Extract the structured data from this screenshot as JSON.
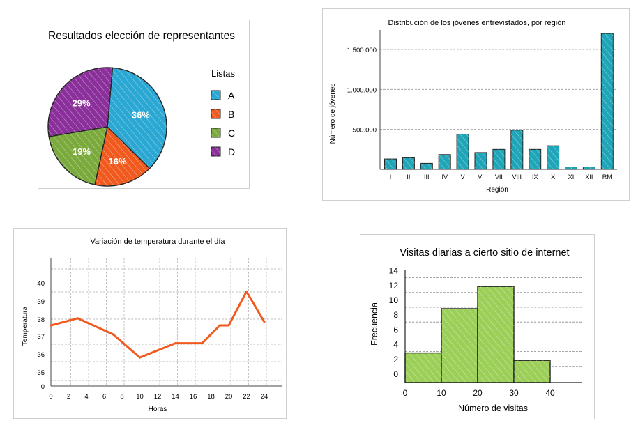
{
  "chart_data": [
    {
      "type": "pie",
      "title": "Resultados elección de representantes",
      "legend_title": "Listas",
      "legend_position": "right",
      "labels": [
        "A",
        "B",
        "C",
        "D"
      ],
      "values": [
        36,
        16,
        19,
        29
      ],
      "value_labels": [
        "36%",
        "16%",
        "19%",
        "29%"
      ],
      "colors": [
        "#2aa7d3",
        "#f05a1f",
        "#7aaa3b",
        "#8b2f9b"
      ]
    },
    {
      "type": "bar",
      "title": "Distribución de los jóvenes entrevistados, por región",
      "xlabel": "Región",
      "ylabel": "Número de jóvenes",
      "categories": [
        "I",
        "II",
        "III",
        "IV",
        "V",
        "VI",
        "VII",
        "VIII",
        "IX",
        "X",
        "XI",
        "XII",
        "RM"
      ],
      "values": [
        130000,
        145000,
        75000,
        185000,
        440000,
        210000,
        250000,
        490000,
        250000,
        295000,
        30000,
        30000,
        1700000
      ],
      "ylim": [
        0,
        1800000
      ],
      "yticks": [
        500000,
        1000000,
        1500000
      ],
      "ytick_labels": [
        "500.000",
        "1.000.000",
        "1.500.000"
      ],
      "grid": true,
      "color": "#1fa5b8"
    },
    {
      "type": "line",
      "title": "Variación de temperatura durante el día",
      "xlabel": "Horas",
      "ylabel": "Temperatura",
      "xticks": [
        0,
        2,
        4,
        6,
        8,
        10,
        12,
        14,
        16,
        18,
        20,
        22,
        24
      ],
      "xtick_labels": [
        "0",
        "2",
        "4",
        "6",
        "8",
        "10",
        "12",
        "14",
        "16",
        "18",
        "20",
        "22",
        "24"
      ],
      "ytick_labels": [
        "0",
        "35",
        "36",
        "37",
        "38",
        "39",
        "40"
      ],
      "x": [
        0,
        3,
        7,
        10,
        14,
        17,
        19,
        20,
        22,
        24
      ],
      "y": [
        37.6,
        38.0,
        37.1,
        35.8,
        36.6,
        36.6,
        37.6,
        37.6,
        39.5,
        37.8
      ],
      "grid": true,
      "color": "#f05a1f"
    },
    {
      "type": "bar",
      "title": "Visitas diarias a cierto sitio de internet",
      "xlabel": "Número de visitas",
      "ylabel": "Frecuencia",
      "bins": [
        [
          0,
          10
        ],
        [
          10,
          20
        ],
        [
          20,
          30
        ],
        [
          30,
          40
        ]
      ],
      "values": [
        4,
        10,
        13,
        3
      ],
      "xticks": [
        0,
        10,
        20,
        30,
        40
      ],
      "yticks": [
        0,
        2,
        4,
        6,
        8,
        10,
        12,
        14
      ],
      "ylim": [
        0,
        14
      ],
      "grid": true,
      "color": "#9ccf58"
    }
  ]
}
